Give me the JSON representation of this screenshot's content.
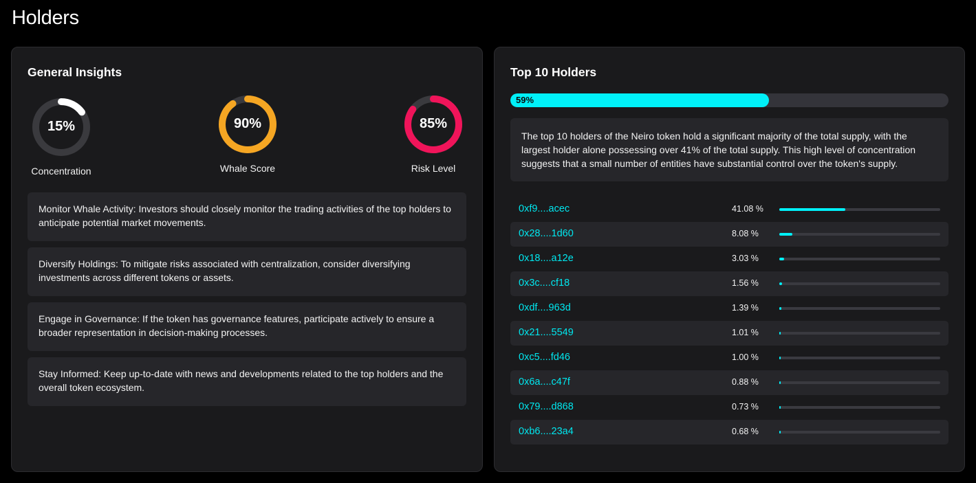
{
  "page": {
    "title": "Holders"
  },
  "insights": {
    "title": "General Insights",
    "gauges": [
      {
        "value": "15%",
        "label": "Concentration",
        "percent": 15,
        "color": "#ffffff",
        "track_color": "#3a3a3e"
      },
      {
        "value": "90%",
        "label": "Whale Score",
        "percent": 90,
        "color": "#f5a623",
        "track_color": "#3a3a3e"
      },
      {
        "value": "85%",
        "label": "Risk Level",
        "percent": 85,
        "color": "#f0145a",
        "track_color": "#3a3a3e"
      }
    ],
    "recommendations": [
      "Monitor Whale Activity: Investors should closely monitor the trading activities of the top holders to anticipate potential market movements.",
      "Diversify Holdings: To mitigate risks associated with centralization, consider diversifying investments across different tokens or assets.",
      "Engage in Governance: If the token has governance features, participate actively to ensure a broader representation in decision-making processes.",
      "Stay Informed: Keep up-to-date with news and developments related to the top holders and the overall token ecosystem."
    ]
  },
  "top_holders": {
    "title": "Top 10 Holders",
    "supply_label": "59%",
    "supply_percent": 59,
    "summary": "The top 10 holders of the Neiro token hold a significant majority of the total supply, with the largest holder alone possessing over 41% of the total supply. This high level of concentration suggests that a small number of entities have substantial control over the token's supply.",
    "accent_color": "#00f0f8",
    "holders": [
      {
        "address": "0xf9....acec",
        "percent_label": "41.08 %",
        "percent": 41.08
      },
      {
        "address": "0x28....1d60",
        "percent_label": "8.08 %",
        "percent": 8.08
      },
      {
        "address": "0x18....a12e",
        "percent_label": "3.03 %",
        "percent": 3.03
      },
      {
        "address": "0x3c....cf18",
        "percent_label": "1.56 %",
        "percent": 1.56
      },
      {
        "address": "0xdf....963d",
        "percent_label": "1.39 %",
        "percent": 1.39
      },
      {
        "address": "0x21....5549",
        "percent_label": "1.01 %",
        "percent": 1.01
      },
      {
        "address": "0xc5....fd46",
        "percent_label": "1.00 %",
        "percent": 1.0
      },
      {
        "address": "0x6a....c47f",
        "percent_label": "0.88 %",
        "percent": 0.88
      },
      {
        "address": "0x79....d868",
        "percent_label": "0.73 %",
        "percent": 0.73
      },
      {
        "address": "0xb6....23a4",
        "percent_label": "0.68 %",
        "percent": 0.68
      }
    ]
  }
}
